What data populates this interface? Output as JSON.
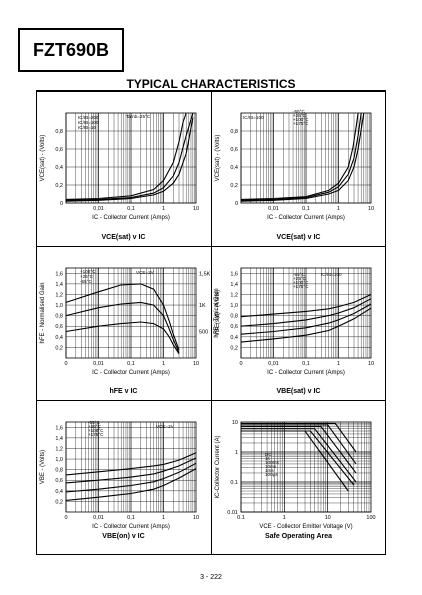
{
  "part_number": "FZT690B",
  "heading": "TYPICAL CHARACTERISTICS",
  "page_number": "3 - 222",
  "chart_data": [
    {
      "id": "vce1",
      "type": "line",
      "caption": "VCE(sat) v IC",
      "xlabel": "IC - Collector Current (Amps)",
      "ylabel": "VCE(sat) - (Volts)",
      "xscale": "log",
      "xlim": [
        0.001,
        10
      ],
      "ylim": [
        0,
        1.0
      ],
      "xticks": [
        [
          0.01,
          "0,01"
        ],
        [
          0.1,
          "0,1"
        ],
        [
          1,
          "1"
        ],
        [
          10,
          "10"
        ]
      ],
      "yticks": [
        [
          0,
          "0"
        ],
        [
          0.2,
          "0,2"
        ],
        [
          0.4,
          "0,4"
        ],
        [
          0.6,
          "0,6"
        ],
        [
          0.8,
          "0,8"
        ]
      ],
      "annotations": [
        "IC/IB=200",
        "IC/IB=100",
        "IC/IB=10",
        "Tamb=25°C"
      ],
      "series": [
        {
          "x": [
            0.001,
            0.01,
            0.1,
            0.5,
            1,
            2,
            3,
            5,
            8
          ],
          "y": [
            0.02,
            0.03,
            0.05,
            0.09,
            0.13,
            0.22,
            0.32,
            0.55,
            0.95
          ]
        },
        {
          "x": [
            0.001,
            0.01,
            0.1,
            0.5,
            1,
            2,
            3,
            5,
            8
          ],
          "y": [
            0.03,
            0.04,
            0.06,
            0.11,
            0.17,
            0.3,
            0.45,
            0.75,
            1.0
          ]
        },
        {
          "x": [
            0.001,
            0.01,
            0.1,
            0.5,
            1,
            2,
            3,
            4,
            5
          ],
          "y": [
            0.04,
            0.05,
            0.08,
            0.15,
            0.25,
            0.45,
            0.68,
            0.9,
            1.0
          ]
        }
      ]
    },
    {
      "id": "vce2",
      "type": "line",
      "caption": "VCE(sat) v IC",
      "xlabel": "IC - Collector Current (Amps)",
      "ylabel": "VCE(sat) - (Volts)",
      "xscale": "log",
      "xlim": [
        0.001,
        10
      ],
      "ylim": [
        0,
        1.0
      ],
      "xticks": [
        [
          0.01,
          "0,01"
        ],
        [
          0.1,
          "0,1"
        ],
        [
          1,
          "1"
        ],
        [
          10,
          "10"
        ]
      ],
      "yticks": [
        [
          0,
          "0"
        ],
        [
          0.2,
          "0,2"
        ],
        [
          0.4,
          "0,4"
        ],
        [
          0.6,
          "0,6"
        ],
        [
          0.8,
          "0,8"
        ]
      ],
      "annotations": [
        "IC/IB=100",
        "-55°C",
        "+25°C",
        "+100°C",
        "+175°C"
      ],
      "series": [
        {
          "x": [
            0.001,
            0.01,
            0.1,
            0.5,
            1,
            2,
            3,
            4,
            6
          ],
          "y": [
            0.02,
            0.03,
            0.05,
            0.1,
            0.14,
            0.25,
            0.4,
            0.6,
            1.0
          ]
        },
        {
          "x": [
            0.001,
            0.01,
            0.1,
            0.5,
            1,
            2,
            3,
            4,
            5
          ],
          "y": [
            0.03,
            0.04,
            0.06,
            0.12,
            0.18,
            0.32,
            0.5,
            0.75,
            1.0
          ]
        },
        {
          "x": [
            0.001,
            0.01,
            0.1,
            0.5,
            1,
            2,
            2.8,
            3.5,
            4
          ],
          "y": [
            0.04,
            0.05,
            0.07,
            0.14,
            0.22,
            0.4,
            0.62,
            0.85,
            1.0
          ]
        }
      ]
    },
    {
      "id": "hfe",
      "type": "line",
      "caption": "hFE v IC",
      "xlabel": "IC - Collector Current (Amps)",
      "ylabel": "hFE - Normalised Gain",
      "ylabel2": "hFE - Typical Gain",
      "xscale": "log",
      "xlim": [
        0.001,
        10
      ],
      "ylim": [
        0,
        1.7
      ],
      "xticks": [
        [
          0.001,
          "0"
        ],
        [
          0.01,
          "0,01"
        ],
        [
          0.1,
          "0,1"
        ],
        [
          1,
          "1"
        ],
        [
          10,
          "10"
        ]
      ],
      "yticks": [
        [
          0.2,
          "0,2"
        ],
        [
          0.4,
          "0,4"
        ],
        [
          0.6,
          "0,6"
        ],
        [
          0.8,
          "0,8"
        ],
        [
          1.0,
          "1,0"
        ],
        [
          1.2,
          "1,2"
        ],
        [
          1.4,
          "1,4"
        ],
        [
          1.6,
          "1,6"
        ]
      ],
      "y2ticks": [
        [
          1.6,
          "1,5K"
        ],
        [
          1.0,
          "1K"
        ],
        [
          0.5,
          "500"
        ]
      ],
      "annotations": [
        "+100°C",
        "+25°C",
        "-55°C",
        "VCE=2V"
      ],
      "series": [
        {
          "x": [
            0.001,
            0.01,
            0.05,
            0.2,
            0.5,
            1,
            1.5,
            2,
            3
          ],
          "y": [
            1.05,
            1.25,
            1.38,
            1.4,
            1.3,
            1.0,
            0.7,
            0.45,
            0.15
          ]
        },
        {
          "x": [
            0.001,
            0.01,
            0.05,
            0.2,
            0.5,
            1,
            1.5,
            2,
            3
          ],
          "y": [
            0.8,
            0.95,
            1.02,
            1.05,
            1.0,
            0.8,
            0.55,
            0.35,
            0.1
          ]
        },
        {
          "x": [
            0.001,
            0.01,
            0.05,
            0.2,
            0.5,
            1,
            1.5,
            2,
            3
          ],
          "y": [
            0.5,
            0.6,
            0.65,
            0.68,
            0.65,
            0.55,
            0.4,
            0.25,
            0.08
          ]
        }
      ]
    },
    {
      "id": "vbesat",
      "type": "line",
      "caption": "VBE(sat) v IC",
      "xlabel": "IC - Collector Current (Amps)",
      "ylabel": "VBE(sat) - (Volts)",
      "xscale": "log",
      "xlim": [
        0.001,
        10
      ],
      "ylim": [
        0,
        1.7
      ],
      "xticks": [
        [
          0.001,
          "0"
        ],
        [
          0.01,
          "0,01"
        ],
        [
          0.1,
          "0,1"
        ],
        [
          1,
          "1"
        ],
        [
          10,
          "10"
        ]
      ],
      "yticks": [
        [
          0.2,
          "0,2"
        ],
        [
          0.4,
          "0,4"
        ],
        [
          0.6,
          "0,6"
        ],
        [
          0.8,
          "0,8"
        ],
        [
          1.0,
          "1,0"
        ],
        [
          1.2,
          "1,2"
        ],
        [
          1.4,
          "1,4"
        ],
        [
          1.6,
          "1,6"
        ]
      ],
      "annotations": [
        "IC/IB=100",
        "-55°C",
        "+25°C",
        "+100°C",
        "+175°C"
      ],
      "series": [
        {
          "x": [
            0.001,
            0.01,
            0.1,
            0.5,
            1,
            3,
            10
          ],
          "y": [
            0.78,
            0.83,
            0.88,
            0.93,
            0.97,
            1.05,
            1.2
          ]
        },
        {
          "x": [
            0.001,
            0.01,
            0.1,
            0.5,
            1,
            3,
            10
          ],
          "y": [
            0.6,
            0.65,
            0.72,
            0.8,
            0.85,
            0.95,
            1.12
          ]
        },
        {
          "x": [
            0.001,
            0.01,
            0.1,
            0.5,
            1,
            3,
            10
          ],
          "y": [
            0.45,
            0.5,
            0.57,
            0.66,
            0.72,
            0.84,
            1.02
          ]
        },
        {
          "x": [
            0.001,
            0.01,
            0.1,
            0.5,
            1,
            3,
            10
          ],
          "y": [
            0.3,
            0.36,
            0.43,
            0.52,
            0.6,
            0.74,
            0.94
          ]
        }
      ]
    },
    {
      "id": "vbeon",
      "type": "line",
      "caption": "VBE(on) v IC",
      "xlabel": "IC - Collector Current (Amps)",
      "ylabel": "VBE - (Volts)",
      "xscale": "log",
      "xlim": [
        0.001,
        10
      ],
      "ylim": [
        0,
        1.7
      ],
      "xticks": [
        [
          0.001,
          "0"
        ],
        [
          0.01,
          "0,01"
        ],
        [
          0.1,
          "0,1"
        ],
        [
          1,
          "1"
        ],
        [
          10,
          "10"
        ]
      ],
      "yticks": [
        [
          0.2,
          "0,2"
        ],
        [
          0.4,
          "0,4"
        ],
        [
          0.6,
          "0,6"
        ],
        [
          0.8,
          "0,8"
        ],
        [
          1.0,
          "1,0"
        ],
        [
          1.2,
          "1,2"
        ],
        [
          1.4,
          "1,4"
        ],
        [
          1.6,
          "1,6"
        ]
      ],
      "annotations": [
        "VCE=2V",
        "-55°C",
        "+25°C",
        "+100°C",
        "+175°C"
      ],
      "series": [
        {
          "x": [
            0.001,
            0.01,
            0.1,
            0.5,
            1,
            3,
            10
          ],
          "y": [
            0.7,
            0.76,
            0.82,
            0.87,
            0.9,
            0.98,
            1.12
          ]
        },
        {
          "x": [
            0.001,
            0.01,
            0.1,
            0.5,
            1,
            3,
            10
          ],
          "y": [
            0.55,
            0.6,
            0.66,
            0.72,
            0.77,
            0.87,
            1.02
          ]
        },
        {
          "x": [
            0.001,
            0.01,
            0.1,
            0.5,
            1,
            3,
            10
          ],
          "y": [
            0.38,
            0.43,
            0.5,
            0.57,
            0.63,
            0.75,
            0.92
          ]
        },
        {
          "x": [
            0.001,
            0.01,
            0.1,
            0.5,
            1,
            3,
            10
          ],
          "y": [
            0.22,
            0.28,
            0.35,
            0.43,
            0.5,
            0.64,
            0.82
          ]
        }
      ]
    },
    {
      "id": "soa",
      "type": "line",
      "caption": "Safe Operating Area",
      "xlabel": "VCE - Collector Emitter Voltage (V)",
      "ylabel": "IC-Collector Current (A)",
      "xscale": "log",
      "yscale": "log",
      "xlim": [
        0.1,
        100
      ],
      "ylim": [
        0.01,
        10
      ],
      "xticks": [
        [
          0.1,
          "0.1"
        ],
        [
          1,
          "1"
        ],
        [
          10,
          "10"
        ],
        [
          100,
          "100"
        ]
      ],
      "yticks": [
        [
          0.01,
          "0.01"
        ],
        [
          0.1,
          "0.1"
        ],
        [
          1,
          "1"
        ],
        [
          10,
          "10"
        ]
      ],
      "annotations": [
        "DC",
        "1s",
        "100ms",
        "10ms",
        "1ms",
        "100µs"
      ],
      "series": [
        {
          "x": [
            0.1,
            3,
            30
          ],
          "y": [
            5,
            5,
            0.05
          ]
        },
        {
          "x": [
            0.1,
            4,
            40
          ],
          "y": [
            5,
            5,
            0.08
          ]
        },
        {
          "x": [
            0.1,
            5,
            45
          ],
          "y": [
            6,
            6,
            0.1
          ]
        },
        {
          "x": [
            0.1,
            7,
            45
          ],
          "y": [
            7,
            7,
            0.2
          ]
        },
        {
          "x": [
            0.1,
            10,
            45
          ],
          "y": [
            8,
            8,
            0.4
          ]
        },
        {
          "x": [
            0.1,
            15,
            45
          ],
          "y": [
            9,
            9,
            1
          ]
        }
      ]
    }
  ]
}
